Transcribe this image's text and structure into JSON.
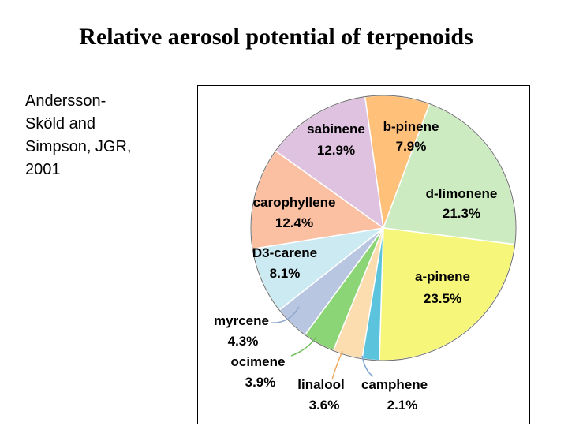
{
  "title": "Relative aerosol potential of terpenoids",
  "citation": {
    "lines": [
      "Andersson-",
      "Sköld and",
      "Simpson, JGR,",
      "2001"
    ]
  },
  "chart_data": {
    "type": "pie",
    "slices": [
      {
        "name": "b-pinene",
        "label": "7.9%",
        "value": 7.9,
        "color": "#FFC07A"
      },
      {
        "name": "d-limonene",
        "label": "21.3%",
        "value": 21.3,
        "color": "#CDEBC0"
      },
      {
        "name": "a-pinene",
        "label": "23.5%",
        "value": 23.5,
        "color": "#F6F67A"
      },
      {
        "name": "camphene",
        "label": "2.1%",
        "value": 2.1,
        "color": "#5CC3DD"
      },
      {
        "name": "linalool",
        "label": "3.6%",
        "value": 3.6,
        "color": "#FBDDB0"
      },
      {
        "name": "ocimene",
        "label": "3.9%",
        "value": 3.9,
        "color": "#8CD576"
      },
      {
        "name": "myrcene",
        "label": "4.3%",
        "value": 4.3,
        "color": "#B8C6E2"
      },
      {
        "name": "D3-carene",
        "label": "8.1%",
        "value": 8.1,
        "color": "#CBEAF2"
      },
      {
        "name": "carophyllene",
        "label": "12.4%",
        "value": 12.4,
        "color": "#FBBFA2"
      },
      {
        "name": "sabinene",
        "label": "12.9%",
        "value": 12.9,
        "color": "#DFC1E0"
      }
    ],
    "leader_line_colors": {
      "myrcene": "#8EA6CC",
      "ocimene": "#6FBF58",
      "linalool": "#F0A860",
      "camphene": "#7FA6D2"
    }
  }
}
